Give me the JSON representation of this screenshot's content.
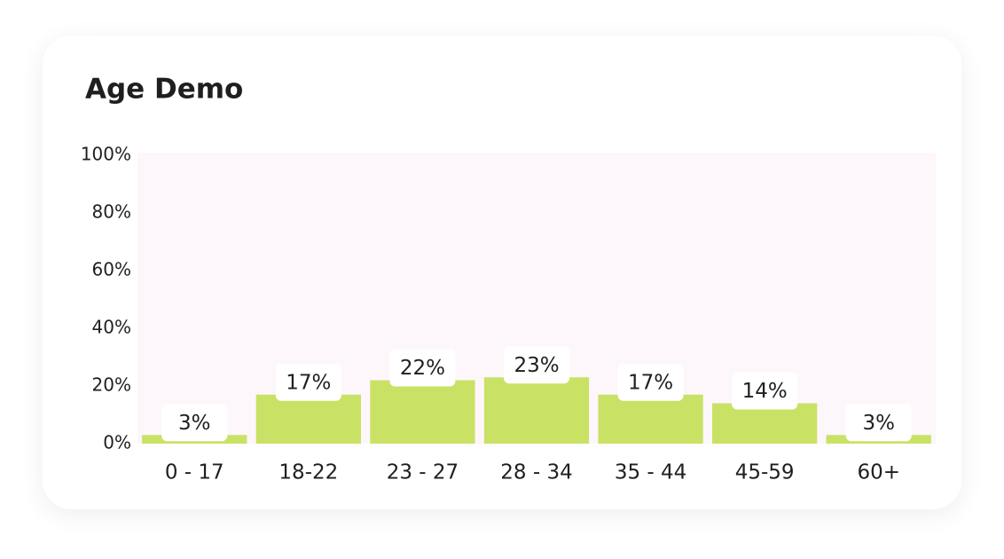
{
  "chart_data": {
    "type": "bar",
    "title": "Age Demo",
    "categories": [
      "0 - 17",
      "18-22",
      "23 - 27",
      "28 - 34",
      "35 - 44",
      "45-59",
      "60+"
    ],
    "values": [
      3,
      17,
      22,
      23,
      17,
      14,
      3
    ],
    "value_labels": [
      "3%",
      "17%",
      "22%",
      "23%",
      "17%",
      "14%",
      "3%"
    ],
    "color": "#c9e265",
    "ylim": [
      0,
      100
    ],
    "yticks": [
      {
        "value": 0,
        "label": "0%"
      },
      {
        "value": 20,
        "label": "20%"
      },
      {
        "value": 40,
        "label": "40%"
      },
      {
        "value": 60,
        "label": "60%"
      },
      {
        "value": 80,
        "label": "80%"
      },
      {
        "value": 100,
        "label": "100%"
      }
    ],
    "grid": false
  }
}
